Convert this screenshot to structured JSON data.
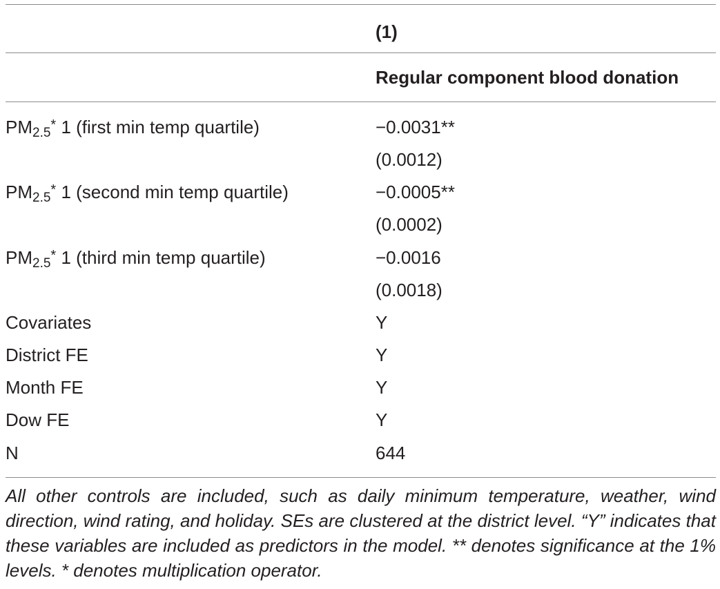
{
  "header": {
    "column_number": "(1)",
    "column_title": "Regular component blood donation"
  },
  "rows": [
    {
      "label_main": "PM",
      "label_sub": "2.5",
      "label_star": "*",
      "label_rest": " 1 (first min temp quartile)",
      "coef": "−0.0031**",
      "se": "(0.0012)"
    },
    {
      "label_main": "PM",
      "label_sub": "2.5",
      "label_star": "*",
      "label_rest": " 1 (second min temp quartile)",
      "coef": "−0.0005**",
      "se": "(0.0002)"
    },
    {
      "label_main": "PM",
      "label_sub": "2.5",
      "label_star": "*",
      "label_rest": " 1 (third min temp quartile)",
      "coef": "−0.0016",
      "se": "(0.0018)"
    }
  ],
  "indicators": [
    {
      "label": "Covariates",
      "value": "Y"
    },
    {
      "label": "District FE",
      "value": "Y"
    },
    {
      "label": "Month FE",
      "value": "Y"
    },
    {
      "label": "Dow FE",
      "value": "Y"
    },
    {
      "label": "N",
      "value": "644"
    }
  ],
  "note": "All other controls are included, such as daily minimum temperature, weather, wind direction, wind rating, and holiday. SEs are clustered at the district level. “Y” indicates that these variables are included as predictors in the model. ** denotes significance at the 1% levels. * denotes multiplication operator."
}
